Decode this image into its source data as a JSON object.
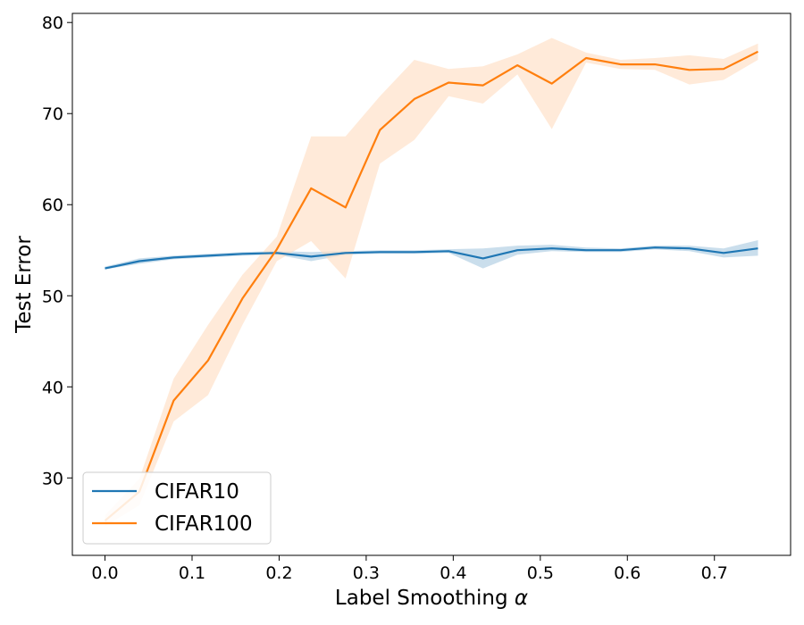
{
  "chart_data": {
    "type": "line",
    "title": "",
    "xlabel": "Label Smoothing",
    "xlabel_symbol": "α",
    "ylabel": "Test Error",
    "xlim": [
      -0.0375,
      0.7875
    ],
    "ylim": [
      21.5,
      81.0
    ],
    "xticks": [
      0.0,
      0.1,
      0.2,
      0.3,
      0.4,
      0.5,
      0.6,
      0.7
    ],
    "xtick_labels": [
      "0.0",
      "0.1",
      "0.2",
      "0.3",
      "0.4",
      "0.5",
      "0.6",
      "0.7"
    ],
    "yticks": [
      30,
      40,
      50,
      60,
      70,
      80
    ],
    "ytick_labels": [
      "30",
      "40",
      "50",
      "60",
      "70",
      "80"
    ],
    "grid": false,
    "legend_position": "lower-left",
    "x": [
      0.0,
      0.0395,
      0.0789,
      0.1184,
      0.1579,
      0.1974,
      0.2368,
      0.2763,
      0.3158,
      0.3553,
      0.3947,
      0.4342,
      0.4737,
      0.5132,
      0.5526,
      0.5921,
      0.6316,
      0.6711,
      0.7105,
      0.75
    ],
    "series": [
      {
        "name": "CIFAR10",
        "color": "#1f77b4",
        "band_color": "#a6c8e0",
        "values": [
          53.0,
          53.8,
          54.2,
          54.4,
          54.6,
          54.7,
          54.3,
          54.7,
          54.8,
          54.8,
          54.9,
          54.1,
          55.0,
          55.2,
          55.0,
          55.0,
          55.3,
          55.2,
          54.7,
          55.2
        ],
        "lower": [
          52.9,
          53.5,
          54.0,
          54.2,
          54.4,
          54.5,
          53.8,
          54.5,
          54.6,
          54.6,
          54.7,
          53.0,
          54.5,
          54.9,
          54.8,
          54.8,
          55.1,
          54.9,
          54.2,
          54.4
        ],
        "upper": [
          53.2,
          54.1,
          54.4,
          54.6,
          54.8,
          54.9,
          54.8,
          54.9,
          55.0,
          55.0,
          55.1,
          55.2,
          55.5,
          55.6,
          55.3,
          55.2,
          55.5,
          55.5,
          55.2,
          56.1
        ]
      },
      {
        "name": "CIFAR100",
        "color": "#ff7f0e",
        "band_color": "#ffdcbf",
        "values": [
          25.3,
          28.5,
          38.5,
          42.9,
          49.7,
          55.1,
          61.8,
          59.7,
          68.2,
          71.6,
          73.4,
          73.1,
          75.3,
          73.3,
          76.1,
          75.4,
          75.4,
          74.8,
          74.9,
          76.8
        ],
        "lower": [
          24.7,
          27.0,
          36.2,
          39.1,
          46.8,
          53.8,
          56.0,
          51.9,
          64.5,
          67.1,
          71.9,
          71.1,
          74.3,
          68.3,
          75.6,
          74.9,
          74.8,
          73.2,
          73.7,
          75.9
        ],
        "upper": [
          25.9,
          29.9,
          40.9,
          46.8,
          52.3,
          56.5,
          67.5,
          67.5,
          71.9,
          75.9,
          74.9,
          75.2,
          76.5,
          78.3,
          76.7,
          75.9,
          76.1,
          76.4,
          76.0,
          77.7
        ]
      }
    ]
  }
}
